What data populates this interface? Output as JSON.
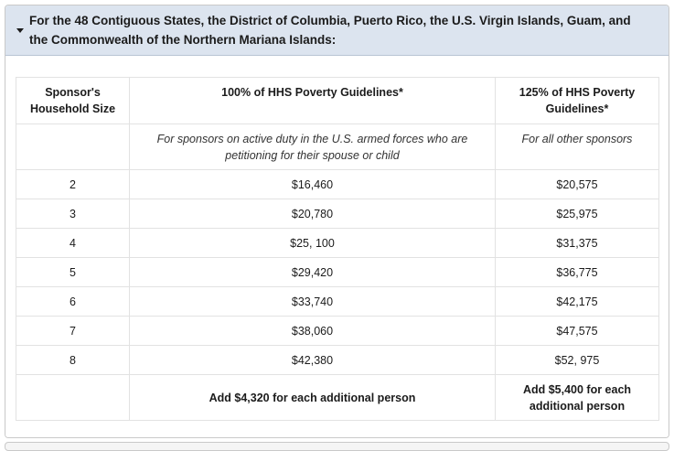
{
  "accordion": {
    "title": "For the 48 Contiguous States, the District of Columbia, Puerto Rico, the U.S. Virgin Islands, Guam, and the Commonwealth of the Northern Mariana Islands:",
    "expanded": true,
    "caret_icon": "caret-down-icon"
  },
  "table": {
    "headers": [
      "Sponsor's Household Size",
      "100% of HHS Poverty Guidelines*",
      "125% of HHS Poverty Guidelines*"
    ],
    "subheaders": [
      "",
      "For sponsors on active duty in the U.S. armed forces who are petitioning for their spouse or child",
      "For all other sponsors"
    ],
    "rows": [
      [
        "2",
        "$16,460",
        "$20,575"
      ],
      [
        "3",
        "$20,780",
        "$25,975"
      ],
      [
        "4",
        "$25, 100",
        "$31,375"
      ],
      [
        "5",
        "$29,420",
        "$36,775"
      ],
      [
        "6",
        "$33,740",
        "$42,175"
      ],
      [
        "7",
        "$38,060",
        "$47,575"
      ],
      [
        "8",
        "$42,380",
        "$52, 975"
      ]
    ],
    "footer": [
      "",
      "Add $4,320 for each additional person",
      "Add $5,400 for each additional person"
    ]
  },
  "colors": {
    "header_bg": "#dce4ef",
    "border": "#c9c9c9",
    "cell_border": "#e2e2e2"
  }
}
